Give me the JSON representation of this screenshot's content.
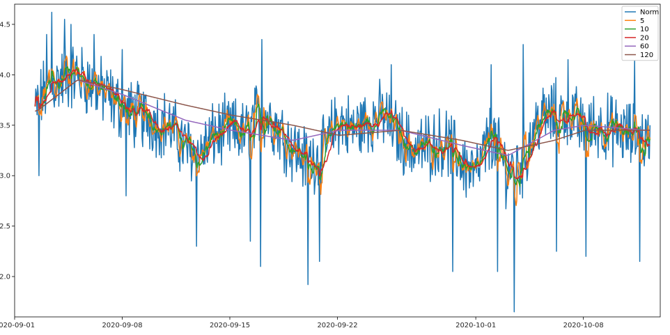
{
  "chart_data": {
    "type": "line",
    "title": "",
    "xlabel": "",
    "ylabel": "",
    "x_range": [
      "2020-09-01",
      "2020-10-13"
    ],
    "ylim": [
      1.6,
      4.7
    ],
    "grid": false,
    "legend_position": "top-right",
    "x_ticks": [
      "2020-09-01",
      "2020-09-08",
      "2020-09-15",
      "2020-09-22",
      "2020-10-01",
      "2020-10-08"
    ],
    "y_ticks": [
      "2.0",
      "2.5",
      "3.0",
      "3.5",
      "4.0",
      "4.5"
    ],
    "x_tick_values": [
      "2020-09-01",
      "2020-09-08",
      "2020-09-15",
      "2020-09-22",
      "2020-10-01",
      "2020-10-08"
    ],
    "y_tick_values": [
      2.0,
      2.5,
      3.0,
      3.5,
      4.0,
      4.5
    ],
    "sample_interval_hours": 1,
    "x_start": "2020-09-02 08:00",
    "series": [
      {
        "name": "Norm",
        "color": "#1f77b4",
        "width": 1.5
      },
      {
        "name": "5",
        "color": "#ff7f0e",
        "width": 1.5
      },
      {
        "name": "10",
        "color": "#2ca02c",
        "width": 1.5
      },
      {
        "name": "20",
        "color": "#d62728",
        "width": 1.5
      },
      {
        "name": "60",
        "color": "#9467bd",
        "width": 1.5
      },
      {
        "name": "120",
        "color": "#8c564b",
        "width": 1.5
      }
    ],
    "trend_points": [
      [
        "2020-09-02",
        3.55
      ],
      [
        "2020-09-03",
        3.85
      ],
      [
        "2020-09-04",
        3.95
      ],
      [
        "2020-09-05",
        4.0
      ],
      [
        "2020-09-06",
        3.9
      ],
      [
        "2020-09-07",
        3.8
      ],
      [
        "2020-09-08",
        3.65
      ],
      [
        "2020-09-09",
        3.6
      ],
      [
        "2020-09-10",
        3.55
      ],
      [
        "2020-09-11",
        3.5
      ],
      [
        "2020-09-12",
        3.3
      ],
      [
        "2020-09-13",
        3.2
      ],
      [
        "2020-09-14",
        3.4
      ],
      [
        "2020-09-15",
        3.45
      ],
      [
        "2020-09-16",
        3.4
      ],
      [
        "2020-09-17",
        3.65
      ],
      [
        "2020-09-18",
        3.5
      ],
      [
        "2020-09-19",
        3.3
      ],
      [
        "2020-09-20",
        3.15
      ],
      [
        "2020-09-21",
        3.2
      ],
      [
        "2020-09-22",
        3.55
      ],
      [
        "2020-09-23",
        3.45
      ],
      [
        "2020-09-24",
        3.55
      ],
      [
        "2020-09-25",
        3.6
      ],
      [
        "2020-09-26",
        3.4
      ],
      [
        "2020-09-27",
        3.25
      ],
      [
        "2020-09-28",
        3.3
      ],
      [
        "2020-09-29",
        3.35
      ],
      [
        "2020-09-30",
        3.15
      ],
      [
        "2020-10-01",
        3.0
      ],
      [
        "2020-10-02",
        3.4
      ],
      [
        "2020-10-03",
        3.05
      ],
      [
        "2020-10-04",
        3.1
      ],
      [
        "2020-10-05",
        3.55
      ],
      [
        "2020-10-06",
        3.6
      ],
      [
        "2020-10-07",
        3.65
      ],
      [
        "2020-10-08",
        3.45
      ],
      [
        "2020-10-09",
        3.5
      ],
      [
        "2020-10-10",
        3.45
      ],
      [
        "2020-10-11",
        3.4
      ],
      [
        "2020-10-12",
        3.35
      ]
    ],
    "spikes": [
      [
        "2020-09-02 14:00",
        3.0
      ],
      [
        "2020-09-03 02:00",
        4.4
      ],
      [
        "2020-09-03 10:00",
        4.62
      ],
      [
        "2020-09-04 06:00",
        4.55
      ],
      [
        "2020-09-04 16:00",
        4.5
      ],
      [
        "2020-09-06 04:00",
        4.4
      ],
      [
        "2020-09-08 00:00",
        4.25
      ],
      [
        "2020-09-08 06:00",
        2.8
      ],
      [
        "2020-09-12 20:00",
        2.3
      ],
      [
        "2020-09-16 08:00",
        2.35
      ],
      [
        "2020-09-17 00:00",
        2.1
      ],
      [
        "2020-09-17 02:00",
        4.35
      ],
      [
        "2020-09-20 02:00",
        1.92
      ],
      [
        "2020-09-20 20:00",
        2.15
      ],
      [
        "2020-09-25 12:00",
        4.1
      ],
      [
        "2020-09-29 12:00",
        2.05
      ],
      [
        "2020-10-02 00:00",
        4.1
      ],
      [
        "2020-10-02 10:00",
        2.05
      ],
      [
        "2020-10-03 12:00",
        1.65
      ],
      [
        "2020-10-04 02:00",
        4.3
      ],
      [
        "2020-10-06 06:00",
        2.25
      ],
      [
        "2020-10-07 00:00",
        4.15
      ],
      [
        "2020-10-08 04:00",
        2.2
      ],
      [
        "2020-10-11 08:00",
        4.15
      ],
      [
        "2020-10-11 16:00",
        2.15
      ]
    ],
    "ma_trend_points": {
      "60": [
        [
          "2020-09-02",
          3.6
        ],
        [
          "2020-09-05",
          3.95
        ],
        [
          "2020-09-08",
          3.8
        ],
        [
          "2020-09-12",
          3.55
        ],
        [
          "2020-09-15",
          3.45
        ],
        [
          "2020-09-19",
          3.35
        ],
        [
          "2020-09-22",
          3.45
        ],
        [
          "2020-09-26",
          3.45
        ],
        [
          "2020-09-30",
          3.3
        ],
        [
          "2020-10-03",
          3.2
        ],
        [
          "2020-10-06",
          3.45
        ],
        [
          "2020-10-08",
          3.5
        ],
        [
          "2020-10-12",
          3.45
        ]
      ],
      "120": [
        [
          "2020-09-02",
          3.6
        ],
        [
          "2020-09-05",
          3.95
        ],
        [
          "2020-09-08",
          3.85
        ],
        [
          "2020-09-12",
          3.7
        ],
        [
          "2020-09-15",
          3.6
        ],
        [
          "2020-09-19",
          3.5
        ],
        [
          "2020-09-22",
          3.4
        ],
        [
          "2020-09-26",
          3.45
        ],
        [
          "2020-09-30",
          3.35
        ],
        [
          "2020-10-03",
          3.25
        ],
        [
          "2020-10-06",
          3.35
        ],
        [
          "2020-10-08",
          3.45
        ],
        [
          "2020-10-12",
          3.45
        ]
      ]
    }
  }
}
